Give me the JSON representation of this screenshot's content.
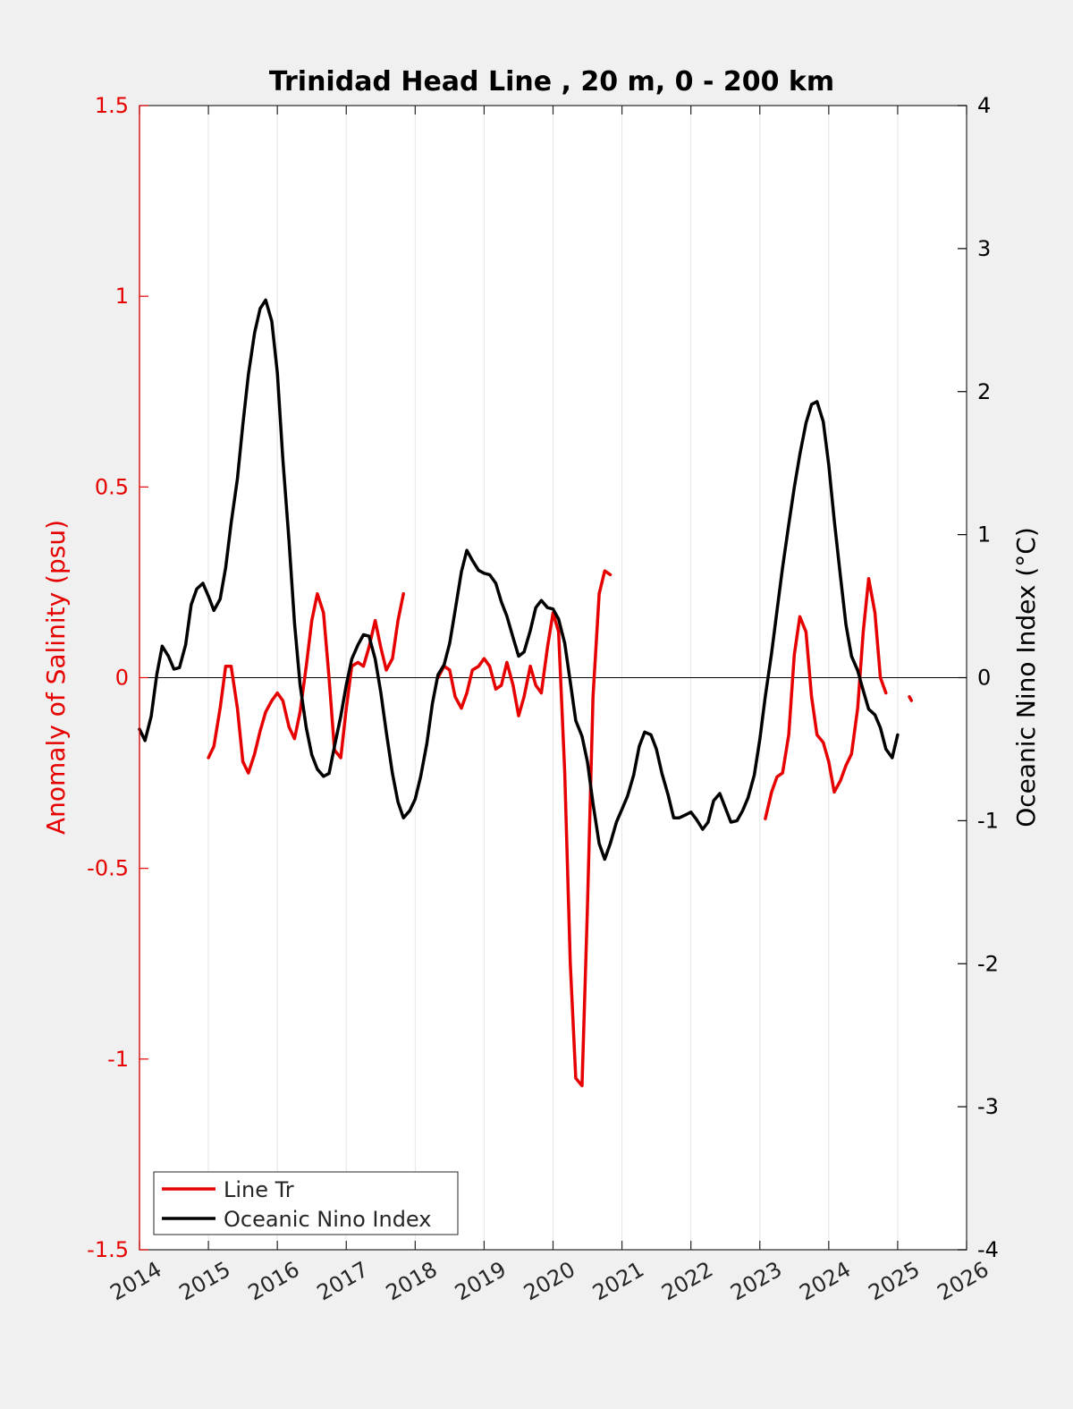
{
  "chart_data": {
    "type": "line",
    "title": "Trinidad Head Line , 20 m, 0 - 200 km",
    "ylabel_left": "Anomaly of Salinity (psu)",
    "ylabel_right": "Oceanic Nino Index (°C)",
    "xlim": [
      2014,
      2026
    ],
    "ylim_left": [
      -1.5,
      1.5
    ],
    "ylim_right": [
      -4,
      4
    ],
    "x_ticks": [
      "2014",
      "2015",
      "2016",
      "2017",
      "2018",
      "2019",
      "2020",
      "2021",
      "2022",
      "2023",
      "2024",
      "2025",
      "2026"
    ],
    "y_left_ticks": [
      "-1.5",
      "-1",
      "-0.5",
      "0",
      "0.5",
      "1",
      "1.5"
    ],
    "y_right_ticks": [
      "-4",
      "-3",
      "-2",
      "-1",
      "0",
      "1",
      "2",
      "3",
      "4"
    ],
    "grid": "vertical",
    "legend_position": "bottom-left",
    "colors": {
      "salinity": "#e60000",
      "oni": "#000000",
      "left_axis": "#e60000",
      "right_axis": "#000000"
    },
    "series": [
      {
        "name": "Line Tr",
        "axis": "left",
        "color": "#e60000",
        "segments": [
          [
            [
              2015.0,
              -0.21
            ],
            [
              2015.08,
              -0.18
            ],
            [
              2015.17,
              -0.08
            ],
            [
              2015.25,
              0.03
            ],
            [
              2015.33,
              0.03
            ],
            [
              2015.42,
              -0.08
            ],
            [
              2015.5,
              -0.22
            ],
            [
              2015.58,
              -0.25
            ],
            [
              2015.67,
              -0.2
            ],
            [
              2015.75,
              -0.14
            ],
            [
              2015.83,
              -0.09
            ],
            [
              2015.92,
              -0.06
            ],
            [
              2016.0,
              -0.04
            ],
            [
              2016.08,
              -0.06
            ],
            [
              2016.17,
              -0.13
            ],
            [
              2016.25,
              -0.16
            ],
            [
              2016.33,
              -0.09
            ],
            [
              2016.42,
              0.03
            ],
            [
              2016.5,
              0.15
            ],
            [
              2016.58,
              0.22
            ],
            [
              2016.67,
              0.17
            ],
            [
              2016.75,
              0.0
            ],
            [
              2016.83,
              -0.19
            ],
            [
              2016.92,
              -0.21
            ],
            [
              2017.0,
              -0.08
            ],
            [
              2017.08,
              0.03
            ],
            [
              2017.17,
              0.04
            ],
            [
              2017.25,
              0.03
            ],
            [
              2017.33,
              0.08
            ],
            [
              2017.42,
              0.15
            ],
            [
              2017.5,
              0.08
            ],
            [
              2017.58,
              0.02
            ],
            [
              2017.67,
              0.05
            ],
            [
              2017.75,
              0.15
            ],
            [
              2017.83,
              0.22
            ]
          ],
          [
            [
              2018.33,
              0.0
            ],
            [
              2018.42,
              0.03
            ],
            [
              2018.5,
              0.02
            ],
            [
              2018.58,
              -0.05
            ],
            [
              2018.67,
              -0.08
            ],
            [
              2018.75,
              -0.04
            ],
            [
              2018.83,
              0.02
            ],
            [
              2018.92,
              0.03
            ],
            [
              2019.0,
              0.05
            ],
            [
              2019.08,
              0.03
            ],
            [
              2019.17,
              -0.03
            ],
            [
              2019.25,
              -0.02
            ],
            [
              2019.33,
              0.04
            ],
            [
              2019.42,
              -0.02
            ],
            [
              2019.5,
              -0.1
            ],
            [
              2019.58,
              -0.05
            ],
            [
              2019.67,
              0.03
            ],
            [
              2019.75,
              -0.02
            ],
            [
              2019.83,
              -0.04
            ],
            [
              2019.92,
              0.08
            ],
            [
              2020.0,
              0.17
            ],
            [
              2020.08,
              0.12
            ],
            [
              2020.17,
              -0.25
            ],
            [
              2020.25,
              -0.75
            ],
            [
              2020.33,
              -1.05
            ],
            [
              2020.42,
              -1.07
            ],
            [
              2020.5,
              -0.6
            ],
            [
              2020.58,
              -0.05
            ],
            [
              2020.67,
              0.22
            ],
            [
              2020.75,
              0.28
            ],
            [
              2020.83,
              0.27
            ]
          ],
          [
            [
              2023.08,
              -0.37
            ],
            [
              2023.17,
              -0.3
            ],
            [
              2023.25,
              -0.26
            ],
            [
              2023.33,
              -0.25
            ],
            [
              2023.42,
              -0.15
            ],
            [
              2023.5,
              0.06
            ],
            [
              2023.58,
              0.16
            ],
            [
              2023.67,
              0.12
            ],
            [
              2023.75,
              -0.05
            ],
            [
              2023.83,
              -0.15
            ],
            [
              2023.92,
              -0.17
            ],
            [
              2024.0,
              -0.22
            ],
            [
              2024.08,
              -0.3
            ],
            [
              2024.17,
              -0.27
            ],
            [
              2024.25,
              -0.23
            ],
            [
              2024.33,
              -0.2
            ],
            [
              2024.42,
              -0.08
            ],
            [
              2024.5,
              0.12
            ],
            [
              2024.58,
              0.26
            ],
            [
              2024.67,
              0.17
            ],
            [
              2024.75,
              0.0
            ],
            [
              2024.83,
              -0.04
            ]
          ],
          [
            [
              2025.17,
              -0.05
            ],
            [
              2025.2,
              -0.06
            ]
          ]
        ]
      },
      {
        "name": "Oceanic Nino Index",
        "axis": "right",
        "color": "#000000",
        "segments": [
          [
            [
              2014.0,
              -0.36
            ],
            [
              2014.08,
              -0.44
            ],
            [
              2014.17,
              -0.27
            ],
            [
              2014.25,
              0.02
            ],
            [
              2014.33,
              0.22
            ],
            [
              2014.42,
              0.15
            ],
            [
              2014.5,
              0.06
            ],
            [
              2014.58,
              0.07
            ],
            [
              2014.67,
              0.23
            ],
            [
              2014.75,
              0.51
            ],
            [
              2014.83,
              0.62
            ],
            [
              2014.92,
              0.66
            ],
            [
              2015.0,
              0.57
            ],
            [
              2015.08,
              0.47
            ],
            [
              2015.17,
              0.55
            ],
            [
              2015.25,
              0.77
            ],
            [
              2015.33,
              1.08
            ],
            [
              2015.42,
              1.39
            ],
            [
              2015.5,
              1.77
            ],
            [
              2015.58,
              2.12
            ],
            [
              2015.67,
              2.41
            ],
            [
              2015.75,
              2.58
            ],
            [
              2015.83,
              2.64
            ],
            [
              2015.92,
              2.49
            ],
            [
              2016.0,
              2.13
            ],
            [
              2016.08,
              1.53
            ],
            [
              2016.17,
              0.95
            ],
            [
              2016.25,
              0.38
            ],
            [
              2016.33,
              -0.05
            ],
            [
              2016.42,
              -0.35
            ],
            [
              2016.5,
              -0.54
            ],
            [
              2016.58,
              -0.64
            ],
            [
              2016.67,
              -0.69
            ],
            [
              2016.75,
              -0.67
            ],
            [
              2016.83,
              -0.48
            ],
            [
              2016.92,
              -0.27
            ],
            [
              2017.0,
              -0.05
            ],
            [
              2017.08,
              0.13
            ],
            [
              2017.17,
              0.23
            ],
            [
              2017.25,
              0.3
            ],
            [
              2017.33,
              0.29
            ],
            [
              2017.42,
              0.13
            ],
            [
              2017.5,
              -0.1
            ],
            [
              2017.58,
              -0.38
            ],
            [
              2017.67,
              -0.67
            ],
            [
              2017.75,
              -0.87
            ],
            [
              2017.83,
              -0.98
            ],
            [
              2017.92,
              -0.93
            ],
            [
              2018.0,
              -0.85
            ],
            [
              2018.08,
              -0.69
            ],
            [
              2018.17,
              -0.46
            ],
            [
              2018.25,
              -0.18
            ],
            [
              2018.33,
              0.02
            ],
            [
              2018.42,
              0.09
            ],
            [
              2018.5,
              0.24
            ],
            [
              2018.58,
              0.47
            ],
            [
              2018.67,
              0.74
            ],
            [
              2018.75,
              0.89
            ],
            [
              2018.83,
              0.82
            ],
            [
              2018.92,
              0.75
            ],
            [
              2019.0,
              0.73
            ],
            [
              2019.08,
              0.72
            ],
            [
              2019.17,
              0.66
            ],
            [
              2019.25,
              0.53
            ],
            [
              2019.33,
              0.43
            ],
            [
              2019.42,
              0.28
            ],
            [
              2019.5,
              0.15
            ],
            [
              2019.58,
              0.18
            ],
            [
              2019.67,
              0.33
            ],
            [
              2019.75,
              0.49
            ],
            [
              2019.83,
              0.54
            ],
            [
              2019.92,
              0.49
            ],
            [
              2020.0,
              0.48
            ],
            [
              2020.08,
              0.41
            ],
            [
              2020.17,
              0.24
            ],
            [
              2020.25,
              -0.03
            ],
            [
              2020.33,
              -0.3
            ],
            [
              2020.42,
              -0.41
            ],
            [
              2020.5,
              -0.59
            ],
            [
              2020.58,
              -0.88
            ],
            [
              2020.67,
              -1.16
            ],
            [
              2020.75,
              -1.27
            ],
            [
              2020.83,
              -1.16
            ],
            [
              2020.92,
              -1.01
            ],
            [
              2021.0,
              -0.92
            ],
            [
              2021.08,
              -0.83
            ],
            [
              2021.17,
              -0.68
            ],
            [
              2021.25,
              -0.48
            ],
            [
              2021.33,
              -0.38
            ],
            [
              2021.42,
              -0.4
            ],
            [
              2021.5,
              -0.5
            ],
            [
              2021.58,
              -0.67
            ],
            [
              2021.67,
              -0.82
            ],
            [
              2021.75,
              -0.98
            ],
            [
              2021.83,
              -0.98
            ],
            [
              2021.92,
              -0.96
            ],
            [
              2022.0,
              -0.94
            ],
            [
              2022.08,
              -0.99
            ],
            [
              2022.17,
              -1.06
            ],
            [
              2022.25,
              -1.01
            ],
            [
              2022.33,
              -0.86
            ],
            [
              2022.42,
              -0.81
            ],
            [
              2022.5,
              -0.91
            ],
            [
              2022.58,
              -1.01
            ],
            [
              2022.67,
              -1.0
            ],
            [
              2022.75,
              -0.93
            ],
            [
              2022.83,
              -0.84
            ],
            [
              2022.92,
              -0.68
            ],
            [
              2023.0,
              -0.43
            ],
            [
              2023.08,
              -0.13
            ],
            [
              2023.17,
              0.17
            ],
            [
              2023.25,
              0.47
            ],
            [
              2023.33,
              0.77
            ],
            [
              2023.42,
              1.07
            ],
            [
              2023.5,
              1.33
            ],
            [
              2023.58,
              1.56
            ],
            [
              2023.67,
              1.78
            ],
            [
              2023.75,
              1.91
            ],
            [
              2023.83,
              1.93
            ],
            [
              2023.92,
              1.79
            ],
            [
              2024.0,
              1.49
            ],
            [
              2024.08,
              1.1
            ],
            [
              2024.17,
              0.71
            ],
            [
              2024.25,
              0.37
            ],
            [
              2024.33,
              0.15
            ],
            [
              2024.42,
              0.05
            ],
            [
              2024.5,
              -0.09
            ],
            [
              2024.58,
              -0.22
            ],
            [
              2024.67,
              -0.26
            ],
            [
              2024.75,
              -0.35
            ],
            [
              2024.83,
              -0.5
            ],
            [
              2024.92,
              -0.56
            ],
            [
              2025.0,
              -0.4
            ]
          ]
        ]
      }
    ]
  }
}
